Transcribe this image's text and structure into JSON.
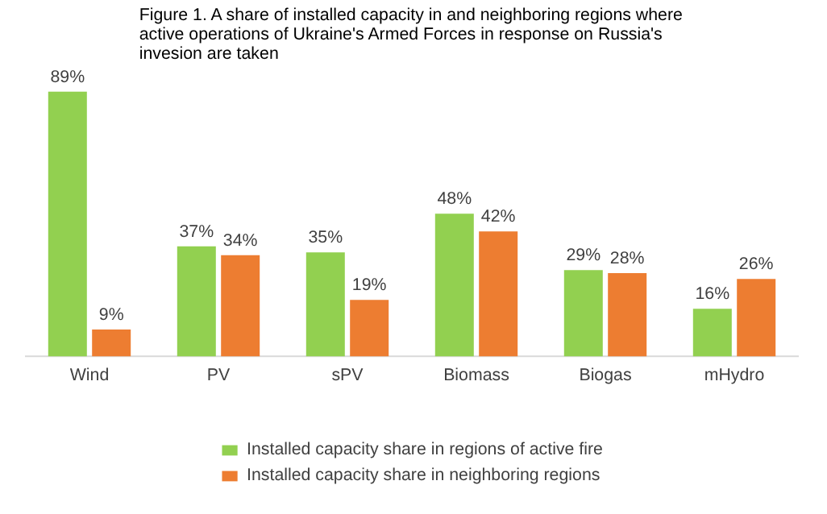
{
  "chart_data": {
    "type": "bar",
    "title": "Figure 1. A share of installed capacity in and neighboring regions where active operations of Ukraine's Armed Forces in response on Russia's invesion are taken",
    "categories": [
      "Wind",
      "PV",
      "sPV",
      "Biomass",
      "Biogas",
      "mHydro"
    ],
    "series": [
      {
        "name": "Installed capacity share in regions of active fire",
        "color": "#92d050",
        "values": [
          89,
          37,
          35,
          48,
          29,
          16
        ],
        "value_labels": [
          "89%",
          "37%",
          "35%",
          "48%",
          "29%",
          "16%"
        ]
      },
      {
        "name": "Installed capacity share in neighboring regions",
        "color": "#ed7d31",
        "values": [
          9,
          34,
          19,
          42,
          28,
          26
        ],
        "value_labels": [
          "9%",
          "34%",
          "19%",
          "42%",
          "28%",
          "26%"
        ]
      }
    ],
    "legend": "bottom"
  }
}
